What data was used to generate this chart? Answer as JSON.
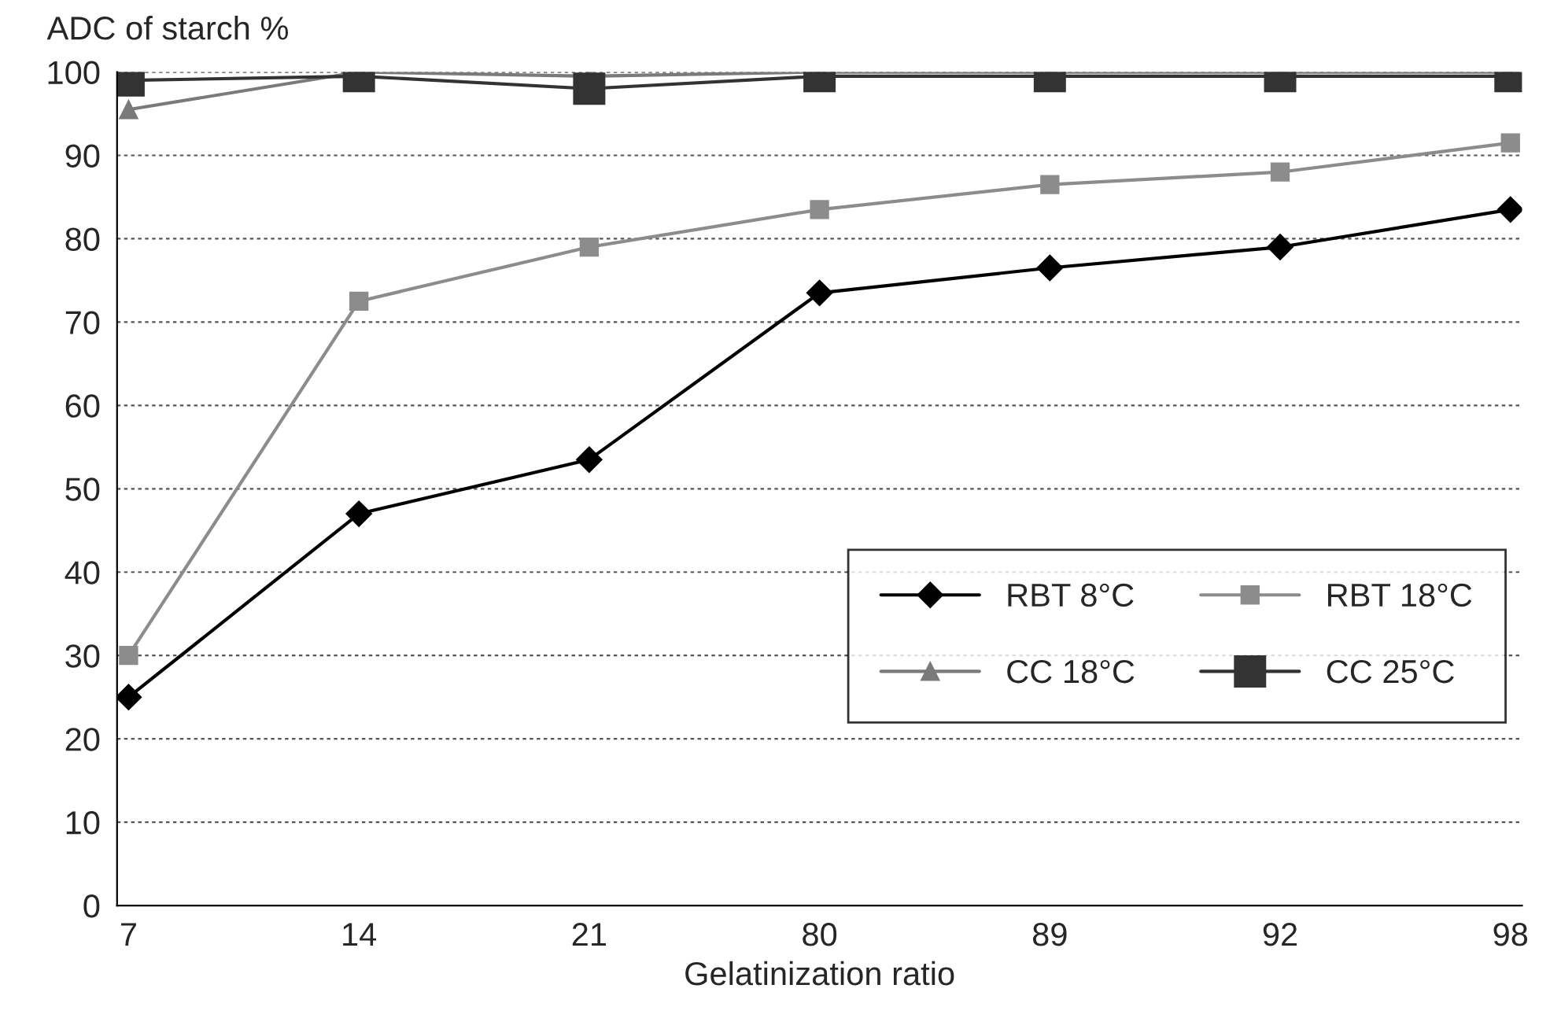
{
  "chart_data": {
    "type": "line",
    "ylabel": "ADC of starch %",
    "xlabel": "Gelatinization ratio",
    "categories": [
      "7",
      "14",
      "21",
      "80",
      "89",
      "92",
      "98"
    ],
    "series": [
      {
        "name": "RBT 8°C",
        "color": "#000000",
        "marker": "diamond",
        "values": [
          25,
          47,
          53.5,
          73.5,
          76.5,
          79,
          83.5
        ]
      },
      {
        "name": "RBT 18°C",
        "color": "#8c8c8c",
        "marker": "square",
        "values": [
          30,
          72.5,
          79,
          83.5,
          86.5,
          88,
          91.5
        ]
      },
      {
        "name": "CC 18°C",
        "color": "#7a7a7a",
        "marker": "triangle",
        "values": [
          95.5,
          100,
          99.5,
          100,
          100,
          100,
          100
        ]
      },
      {
        "name": "CC 25°C",
        "color": "#333333",
        "marker": "square",
        "values": [
          99,
          99.5,
          98,
          99.5,
          99.5,
          99.5,
          99.5
        ]
      }
    ],
    "ylim": [
      0,
      100
    ],
    "yticks": [
      0,
      10,
      20,
      30,
      40,
      50,
      60,
      70,
      80,
      90,
      100
    ],
    "grid": "y",
    "legend": "bottom right",
    "line_style": "solid"
  }
}
